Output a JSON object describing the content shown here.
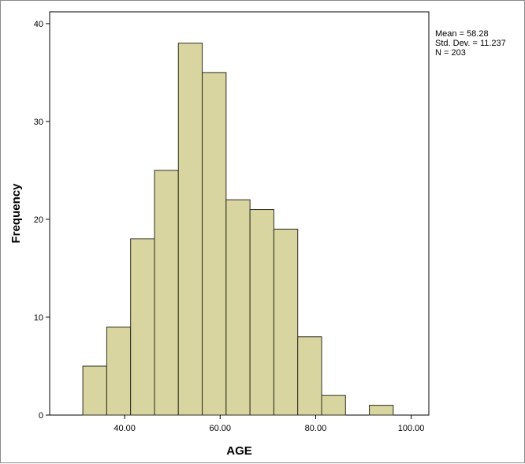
{
  "chart_data": {
    "type": "bar",
    "subtype": "histogram",
    "xlabel": "AGE",
    "ylabel": "Frequency",
    "bin_width": 5,
    "bins": [
      {
        "start": 31.25,
        "end": 36.25,
        "value": 5
      },
      {
        "start": 36.25,
        "end": 41.25,
        "value": 9
      },
      {
        "start": 41.25,
        "end": 46.25,
        "value": 18
      },
      {
        "start": 46.25,
        "end": 51.25,
        "value": 25
      },
      {
        "start": 51.25,
        "end": 56.25,
        "value": 38
      },
      {
        "start": 56.25,
        "end": 61.25,
        "value": 35
      },
      {
        "start": 61.25,
        "end": 66.25,
        "value": 22
      },
      {
        "start": 66.25,
        "end": 71.25,
        "value": 21
      },
      {
        "start": 71.25,
        "end": 76.25,
        "value": 19
      },
      {
        "start": 76.25,
        "end": 81.25,
        "value": 8
      },
      {
        "start": 81.25,
        "end": 86.25,
        "value": 2
      },
      {
        "start": 86.25,
        "end": 91.25,
        "value": 0
      },
      {
        "start": 91.25,
        "end": 96.25,
        "value": 1
      }
    ],
    "xticks": [
      "40.00",
      "60.00",
      "80.00",
      "100.00"
    ],
    "xtick_values": [
      40,
      60,
      80,
      100
    ],
    "yticks": [
      "0",
      "10",
      "20",
      "30",
      "40"
    ],
    "ytick_values": [
      0,
      10,
      20,
      30,
      40
    ],
    "xlim": [
      24.3,
      103.7
    ],
    "ylim": [
      0,
      41.2
    ],
    "grid": false,
    "bar_color": "#d8d5a0",
    "bar_edge_color": "#2e2e1e",
    "stats": {
      "mean": "Mean = 58.28",
      "std": "Std. Dev. = 11.237",
      "n": "N = 203"
    }
  }
}
